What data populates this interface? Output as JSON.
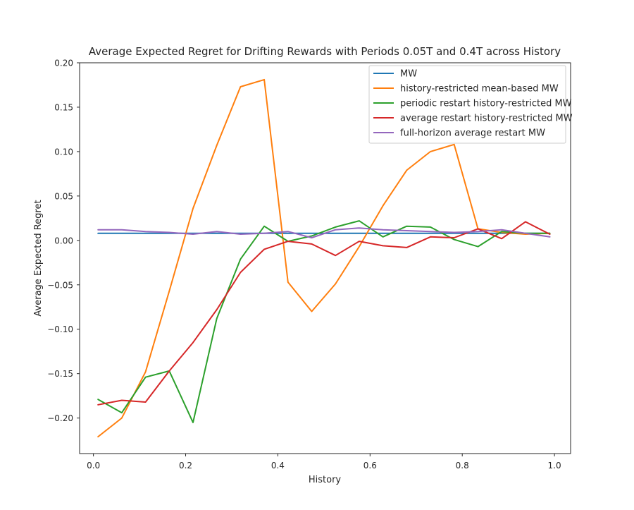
{
  "chart_data": {
    "type": "line",
    "title": "Average Expected Regret for Drifting Rewards with Periods 0.05T and 0.4T across History",
    "xlabel": "History",
    "ylabel": "Average Expected Regret",
    "xlim": [
      -0.03,
      1.035
    ],
    "ylim": [
      -0.24,
      0.2
    ],
    "xticks": [
      0.0,
      0.2,
      0.4,
      0.6,
      0.8,
      1.0
    ],
    "xtick_labels": [
      "0.0",
      "0.2",
      "0.4",
      "0.6",
      "0.8",
      "1.0"
    ],
    "yticks": [
      0.2,
      0.15,
      0.1,
      0.05,
      0.0,
      -0.05,
      -0.1,
      -0.15,
      -0.2
    ],
    "ytick_labels": [
      "0.20",
      "0.15",
      "0.10",
      "0.05",
      "0.00",
      "−0.05",
      "−0.10",
      "−0.15",
      "−0.20"
    ],
    "grid": false,
    "legend_position": "top-right",
    "x": [
      0.01,
      0.0615,
      0.113,
      0.1645,
      0.216,
      0.2675,
      0.319,
      0.3705,
      0.422,
      0.4735,
      0.525,
      0.5765,
      0.628,
      0.6795,
      0.731,
      0.7825,
      0.834,
      0.8855,
      0.937,
      0.99
    ],
    "series": [
      {
        "name": "MW",
        "color": "#1f77b4",
        "values": [
          0.008,
          0.008,
          0.008,
          0.008,
          0.008,
          0.008,
          0.008,
          0.008,
          0.008,
          0.008,
          0.008,
          0.008,
          0.008,
          0.008,
          0.008,
          0.008,
          0.008,
          0.008,
          0.008,
          0.008
        ]
      },
      {
        "name": "history-restricted mean-based MW",
        "color": "#ff7f0e",
        "values": [
          -0.221,
          -0.2,
          -0.148,
          -0.057,
          0.036,
          0.107,
          0.173,
          0.181,
          -0.047,
          -0.08,
          -0.049,
          -0.007,
          0.039,
          0.079,
          0.1,
          0.108,
          0.013,
          0.009,
          0.007,
          0.008
        ]
      },
      {
        "name": "periodic restart history-restricted MW",
        "color": "#2ca02c",
        "values": [
          -0.179,
          -0.194,
          -0.154,
          -0.147,
          -0.205,
          -0.088,
          -0.021,
          0.016,
          -0.001,
          0.005,
          0.015,
          0.022,
          0.004,
          0.016,
          0.015,
          0.001,
          -0.007,
          0.01,
          0.008,
          0.008
        ]
      },
      {
        "name": "average restart history-restricted MW",
        "color": "#d62728",
        "values": [
          -0.185,
          -0.18,
          -0.182,
          -0.147,
          -0.115,
          -0.078,
          -0.036,
          -0.01,
          -0.001,
          -0.004,
          -0.017,
          -0.001,
          -0.006,
          -0.008,
          0.004,
          0.003,
          0.013,
          0.002,
          0.021,
          0.007
        ]
      },
      {
        "name": "full-horizon average restart MW",
        "color": "#9467bd",
        "values": [
          0.012,
          0.012,
          0.01,
          0.009,
          0.007,
          0.01,
          0.007,
          0.008,
          0.01,
          0.003,
          0.012,
          0.014,
          0.012,
          0.011,
          0.01,
          0.009,
          0.01,
          0.012,
          0.008,
          0.004
        ]
      }
    ]
  }
}
